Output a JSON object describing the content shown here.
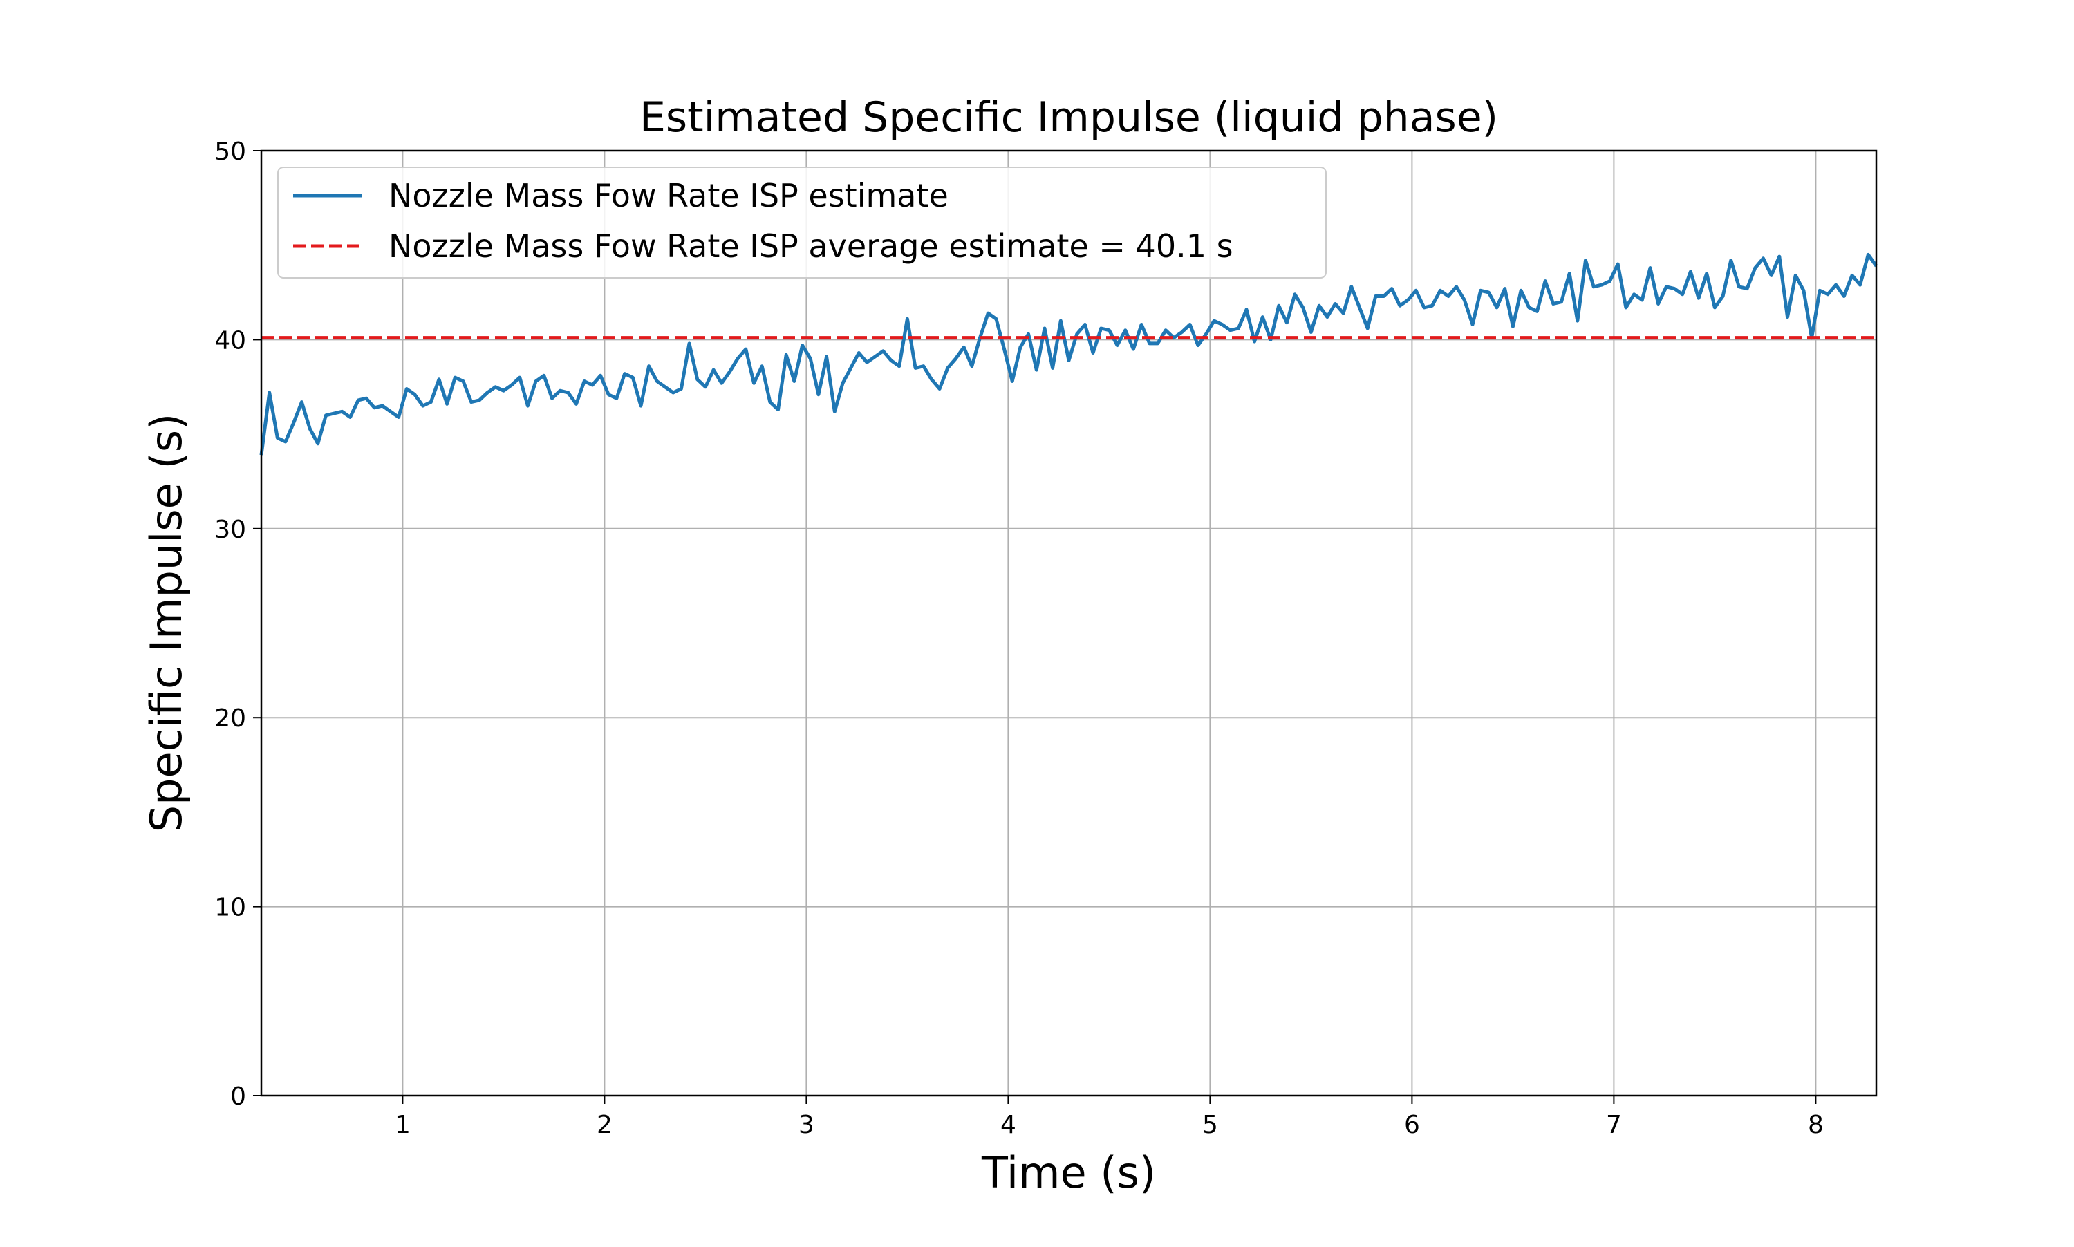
{
  "chart_data": {
    "type": "line",
    "title": "Estimated Specific Impulse (liquid phase)",
    "xlabel": "Time (s)",
    "ylabel": "Specific Impulse (s)",
    "xlim": [
      0.3,
      8.3
    ],
    "ylim": [
      0,
      50
    ],
    "grid": true,
    "legend_placement": "upper-left",
    "x_ticks": [
      1,
      2,
      3,
      4,
      5,
      6,
      7,
      8
    ],
    "x_tick_labels": [
      "1",
      "2",
      "3",
      "4",
      "5",
      "6",
      "7",
      "8"
    ],
    "y_ticks": [
      0,
      10,
      20,
      30,
      40,
      50
    ],
    "y_tick_labels": [
      "0",
      "10",
      "20",
      "30",
      "40",
      "50"
    ],
    "series": [
      {
        "name": "Nozzle Mass Fow Rate ISP estimate",
        "style": "solid",
        "color": "#1f77b4",
        "points": [
          [
            0.3,
            33.9
          ],
          [
            0.34,
            37.2
          ],
          [
            0.38,
            34.8
          ],
          [
            0.42,
            34.6
          ],
          [
            0.46,
            35.6
          ],
          [
            0.5,
            36.7
          ],
          [
            0.54,
            35.3
          ],
          [
            0.58,
            34.5
          ],
          [
            0.62,
            36.0
          ],
          [
            0.66,
            36.1
          ],
          [
            0.7,
            36.2
          ],
          [
            0.74,
            35.9
          ],
          [
            0.78,
            36.8
          ],
          [
            0.82,
            36.9
          ],
          [
            0.86,
            36.4
          ],
          [
            0.9,
            36.5
          ],
          [
            0.94,
            36.2
          ],
          [
            0.98,
            35.9
          ],
          [
            1.02,
            37.4
          ],
          [
            1.06,
            37.1
          ],
          [
            1.1,
            36.5
          ],
          [
            1.14,
            36.7
          ],
          [
            1.18,
            37.9
          ],
          [
            1.22,
            36.6
          ],
          [
            1.26,
            38.0
          ],
          [
            1.3,
            37.8
          ],
          [
            1.34,
            36.7
          ],
          [
            1.38,
            36.8
          ],
          [
            1.42,
            37.2
          ],
          [
            1.46,
            37.5
          ],
          [
            1.5,
            37.3
          ],
          [
            1.54,
            37.6
          ],
          [
            1.58,
            38.0
          ],
          [
            1.62,
            36.5
          ],
          [
            1.66,
            37.8
          ],
          [
            1.7,
            38.1
          ],
          [
            1.74,
            36.9
          ],
          [
            1.78,
            37.3
          ],
          [
            1.82,
            37.2
          ],
          [
            1.86,
            36.6
          ],
          [
            1.9,
            37.8
          ],
          [
            1.94,
            37.6
          ],
          [
            1.98,
            38.1
          ],
          [
            2.02,
            37.1
          ],
          [
            2.06,
            36.9
          ],
          [
            2.1,
            38.2
          ],
          [
            2.14,
            38.0
          ],
          [
            2.18,
            36.5
          ],
          [
            2.22,
            38.6
          ],
          [
            2.26,
            37.8
          ],
          [
            2.3,
            37.5
          ],
          [
            2.34,
            37.2
          ],
          [
            2.38,
            37.4
          ],
          [
            2.42,
            39.8
          ],
          [
            2.46,
            37.9
          ],
          [
            2.5,
            37.5
          ],
          [
            2.54,
            38.4
          ],
          [
            2.58,
            37.7
          ],
          [
            2.62,
            38.3
          ],
          [
            2.66,
            39.0
          ],
          [
            2.7,
            39.5
          ],
          [
            2.74,
            37.7
          ],
          [
            2.78,
            38.6
          ],
          [
            2.82,
            36.7
          ],
          [
            2.86,
            36.3
          ],
          [
            2.9,
            39.2
          ],
          [
            2.94,
            37.8
          ],
          [
            2.98,
            39.7
          ],
          [
            3.02,
            39.0
          ],
          [
            3.06,
            37.1
          ],
          [
            3.1,
            39.1
          ],
          [
            3.14,
            36.2
          ],
          [
            3.18,
            37.7
          ],
          [
            3.22,
            38.5
          ],
          [
            3.26,
            39.3
          ],
          [
            3.3,
            38.8
          ],
          [
            3.34,
            39.1
          ],
          [
            3.38,
            39.4
          ],
          [
            3.42,
            38.9
          ],
          [
            3.46,
            38.6
          ],
          [
            3.5,
            41.1
          ],
          [
            3.54,
            38.5
          ],
          [
            3.58,
            38.6
          ],
          [
            3.62,
            37.9
          ],
          [
            3.66,
            37.4
          ],
          [
            3.7,
            38.5
          ],
          [
            3.74,
            39.0
          ],
          [
            3.78,
            39.6
          ],
          [
            3.82,
            38.6
          ],
          [
            3.86,
            40.1
          ],
          [
            3.9,
            41.4
          ],
          [
            3.94,
            41.1
          ],
          [
            3.98,
            39.5
          ],
          [
            4.02,
            37.8
          ],
          [
            4.06,
            39.6
          ],
          [
            4.1,
            40.3
          ],
          [
            4.14,
            38.4
          ],
          [
            4.18,
            40.6
          ],
          [
            4.22,
            38.5
          ],
          [
            4.26,
            41.0
          ],
          [
            4.3,
            38.9
          ],
          [
            4.34,
            40.3
          ],
          [
            4.38,
            40.8
          ],
          [
            4.42,
            39.3
          ],
          [
            4.46,
            40.6
          ],
          [
            4.5,
            40.5
          ],
          [
            4.54,
            39.7
          ],
          [
            4.58,
            40.5
          ],
          [
            4.62,
            39.5
          ],
          [
            4.66,
            40.8
          ],
          [
            4.7,
            39.8
          ],
          [
            4.74,
            39.8
          ],
          [
            4.78,
            40.5
          ],
          [
            4.82,
            40.1
          ],
          [
            4.86,
            40.4
          ],
          [
            4.9,
            40.8
          ],
          [
            4.94,
            39.7
          ],
          [
            4.98,
            40.3
          ],
          [
            5.02,
            41.0
          ],
          [
            5.06,
            40.8
          ],
          [
            5.1,
            40.5
          ],
          [
            5.14,
            40.6
          ],
          [
            5.18,
            41.6
          ],
          [
            5.22,
            39.9
          ],
          [
            5.26,
            41.2
          ],
          [
            5.3,
            40.0
          ],
          [
            5.34,
            41.8
          ],
          [
            5.38,
            40.9
          ],
          [
            5.42,
            42.4
          ],
          [
            5.46,
            41.7
          ],
          [
            5.5,
            40.4
          ],
          [
            5.54,
            41.8
          ],
          [
            5.58,
            41.2
          ],
          [
            5.62,
            41.9
          ],
          [
            5.66,
            41.4
          ],
          [
            5.7,
            42.8
          ],
          [
            5.74,
            41.7
          ],
          [
            5.78,
            40.6
          ],
          [
            5.82,
            42.3
          ],
          [
            5.86,
            42.3
          ],
          [
            5.9,
            42.7
          ],
          [
            5.94,
            41.8
          ],
          [
            5.98,
            42.1
          ],
          [
            6.02,
            42.6
          ],
          [
            6.06,
            41.7
          ],
          [
            6.1,
            41.8
          ],
          [
            6.14,
            42.6
          ],
          [
            6.18,
            42.3
          ],
          [
            6.22,
            42.8
          ],
          [
            6.26,
            42.1
          ],
          [
            6.3,
            40.8
          ],
          [
            6.34,
            42.6
          ],
          [
            6.38,
            42.5
          ],
          [
            6.42,
            41.7
          ],
          [
            6.46,
            42.7
          ],
          [
            6.5,
            40.7
          ],
          [
            6.54,
            42.6
          ],
          [
            6.58,
            41.7
          ],
          [
            6.62,
            41.5
          ],
          [
            6.66,
            43.1
          ],
          [
            6.7,
            41.9
          ],
          [
            6.74,
            42.0
          ],
          [
            6.78,
            43.5
          ],
          [
            6.82,
            41.0
          ],
          [
            6.86,
            44.2
          ],
          [
            6.9,
            42.8
          ],
          [
            6.94,
            42.9
          ],
          [
            6.98,
            43.1
          ],
          [
            7.02,
            44.0
          ],
          [
            7.06,
            41.7
          ],
          [
            7.1,
            42.4
          ],
          [
            7.14,
            42.1
          ],
          [
            7.18,
            43.8
          ],
          [
            7.22,
            41.9
          ],
          [
            7.26,
            42.8
          ],
          [
            7.3,
            42.7
          ],
          [
            7.34,
            42.4
          ],
          [
            7.38,
            43.6
          ],
          [
            7.42,
            42.2
          ],
          [
            7.46,
            43.5
          ],
          [
            7.5,
            41.7
          ],
          [
            7.54,
            42.3
          ],
          [
            7.58,
            44.2
          ],
          [
            7.62,
            42.8
          ],
          [
            7.66,
            42.7
          ],
          [
            7.7,
            43.8
          ],
          [
            7.74,
            44.3
          ],
          [
            7.78,
            43.4
          ],
          [
            7.82,
            44.4
          ],
          [
            7.86,
            41.2
          ],
          [
            7.9,
            43.4
          ],
          [
            7.94,
            42.6
          ],
          [
            7.98,
            40.1
          ],
          [
            8.02,
            42.6
          ],
          [
            8.06,
            42.4
          ],
          [
            8.1,
            42.9
          ],
          [
            8.14,
            42.3
          ],
          [
            8.18,
            43.4
          ],
          [
            8.22,
            42.9
          ],
          [
            8.26,
            44.5
          ],
          [
            8.3,
            43.9
          ]
        ]
      },
      {
        "name": "Nozzle Mass Fow Rate ISP average estimate = 40.1 s",
        "style": "dashed",
        "color": "#e31a1c",
        "constant": 40.1
      }
    ]
  }
}
